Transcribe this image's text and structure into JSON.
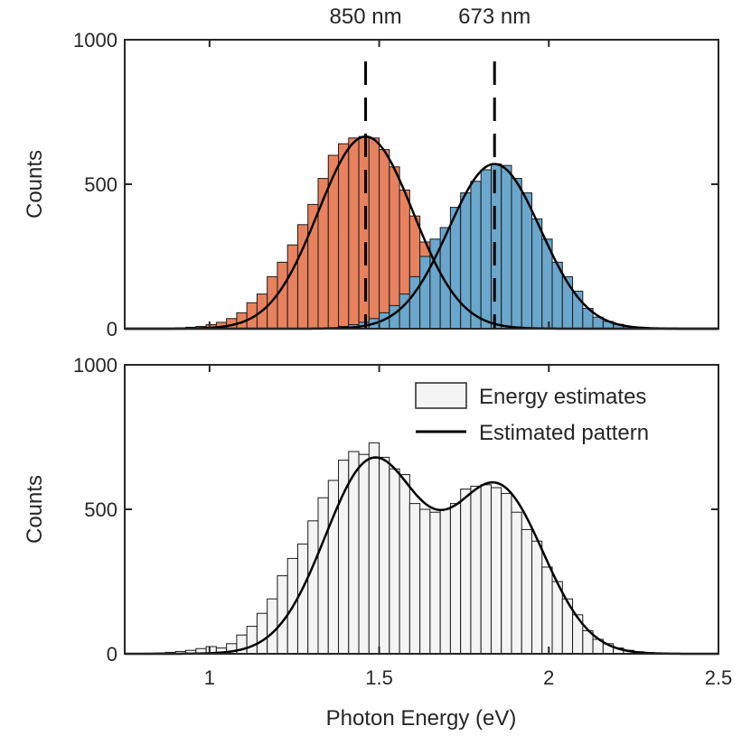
{
  "chart_data": [
    {
      "type": "bar",
      "panel": "top",
      "xlim": [
        0.75,
        2.5
      ],
      "ylim": [
        0,
        1000
      ],
      "ylabel": "Counts",
      "yticks": [
        0,
        500,
        1000
      ],
      "bin_width": 0.03,
      "series": [
        {
          "name": "850 nm histogram",
          "color": "#e8825e",
          "bin_starts": [
            0.9,
            0.93,
            0.96,
            0.99,
            1.02,
            1.05,
            1.08,
            1.11,
            1.14,
            1.17,
            1.2,
            1.23,
            1.26,
            1.29,
            1.32,
            1.35,
            1.38,
            1.41,
            1.44,
            1.47,
            1.5,
            1.53,
            1.56,
            1.59,
            1.62,
            1.65,
            1.68,
            1.71,
            1.74,
            1.77,
            1.8,
            1.83,
            1.86,
            1.89,
            1.92,
            1.95
          ],
          "values": [
            3,
            5,
            8,
            14,
            22,
            35,
            55,
            90,
            120,
            180,
            230,
            290,
            360,
            430,
            520,
            600,
            640,
            660,
            665,
            660,
            620,
            560,
            480,
            390,
            300,
            225,
            165,
            120,
            85,
            55,
            35,
            22,
            14,
            9,
            5,
            3
          ]
        },
        {
          "name": "673 nm histogram",
          "color": "#6ba7cc",
          "bin_starts": [
            1.38,
            1.41,
            1.44,
            1.47,
            1.5,
            1.53,
            1.56,
            1.59,
            1.62,
            1.65,
            1.68,
            1.71,
            1.74,
            1.77,
            1.8,
            1.83,
            1.86,
            1.89,
            1.92,
            1.95,
            1.98,
            2.01,
            2.04,
            2.07,
            2.1,
            2.13,
            2.16,
            2.19,
            2.22,
            2.25,
            2.28
          ],
          "values": [
            8,
            14,
            22,
            35,
            55,
            80,
            120,
            180,
            250,
            310,
            350,
            420,
            470,
            510,
            550,
            570,
            565,
            520,
            470,
            380,
            310,
            230,
            180,
            130,
            70,
            40,
            25,
            15,
            8,
            5,
            3
          ]
        },
        {
          "name": "850 nm fit",
          "type": "line",
          "color": "#000000",
          "mean": 1.46,
          "sigma": 0.14,
          "peak": 665
        },
        {
          "name": "673 nm fit",
          "type": "line",
          "color": "#000000",
          "mean": 1.84,
          "sigma": 0.135,
          "peak": 570
        }
      ],
      "annotations": [
        {
          "text": "850 nm",
          "x": 1.46,
          "style": "dashed-vertical-line"
        },
        {
          "text": "673 nm",
          "x": 1.84,
          "style": "dashed-vertical-line"
        }
      ]
    },
    {
      "type": "bar",
      "panel": "bottom",
      "xlim": [
        0.75,
        2.5
      ],
      "ylim": [
        0,
        1000
      ],
      "xlabel": "Photon Energy (eV)",
      "ylabel": "Counts",
      "xticks": [
        1,
        1.5,
        2,
        2.5
      ],
      "yticks": [
        0,
        500,
        1000
      ],
      "bin_width": 0.03,
      "legend_position": "top-right",
      "series": [
        {
          "name": "Energy estimates",
          "color": "#f4f4f4",
          "bin_starts": [
            0.81,
            0.84,
            0.87,
            0.9,
            0.93,
            0.96,
            0.99,
            1.02,
            1.05,
            1.08,
            1.11,
            1.14,
            1.17,
            1.2,
            1.23,
            1.26,
            1.29,
            1.32,
            1.35,
            1.38,
            1.41,
            1.44,
            1.47,
            1.5,
            1.53,
            1.56,
            1.59,
            1.62,
            1.65,
            1.68,
            1.71,
            1.74,
            1.77,
            1.8,
            1.83,
            1.86,
            1.89,
            1.92,
            1.95,
            1.98,
            2.01,
            2.04,
            2.07,
            2.1,
            2.13,
            2.16,
            2.19,
            2.22,
            2.25,
            2.28,
            2.31
          ],
          "values": [
            2,
            3,
            5,
            8,
            12,
            18,
            25,
            20,
            35,
            65,
            95,
            140,
            190,
            270,
            330,
            380,
            460,
            540,
            600,
            670,
            700,
            690,
            730,
            680,
            640,
            620,
            520,
            500,
            490,
            500,
            520,
            570,
            580,
            585,
            575,
            555,
            490,
            430,
            390,
            300,
            250,
            190,
            135,
            80,
            50,
            35,
            20,
            12,
            7,
            4,
            2
          ]
        },
        {
          "name": "Estimated pattern",
          "type": "line",
          "color": "#000000",
          "components": [
            {
              "mean": 1.48,
              "sigma": 0.14,
              "peak": 665
            },
            {
              "mean": 1.85,
              "sigma": 0.135,
              "peak": 570
            }
          ]
        }
      ]
    }
  ]
}
